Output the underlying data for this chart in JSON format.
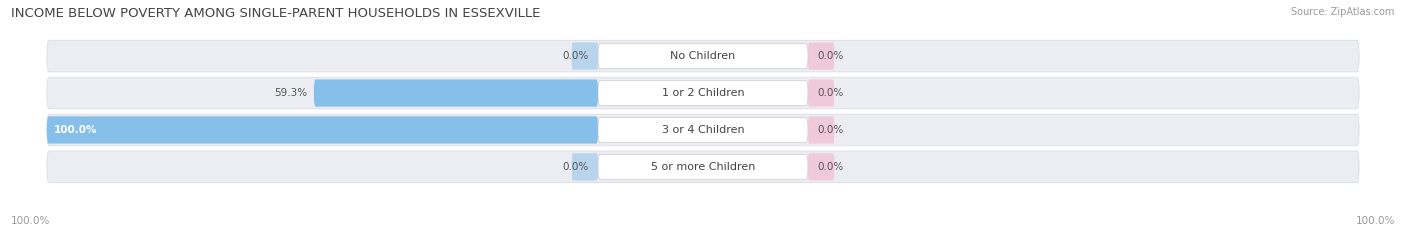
{
  "title": "INCOME BELOW POVERTY AMONG SINGLE-PARENT HOUSEHOLDS IN ESSEXVILLE",
  "source": "Source: ZipAtlas.com",
  "categories": [
    "No Children",
    "1 or 2 Children",
    "3 or 4 Children",
    "5 or more Children"
  ],
  "single_father": [
    0.0,
    59.3,
    100.0,
    0.0
  ],
  "single_mother": [
    0.0,
    0.0,
    0.0,
    0.0
  ],
  "color_father": "#85BFEA",
  "color_mother": "#F4A8C0",
  "bar_bg_color": "#ECEDF2",
  "row_sep_color": "#D8D8E0",
  "max_value": 100.0,
  "x_axis_left_label": "100.0%",
  "x_axis_right_label": "100.0%",
  "title_fontsize": 9.5,
  "label_fontsize": 7.5,
  "value_fontsize": 7.5,
  "legend_fontsize": 8,
  "source_fontsize": 7,
  "cat_label_fontsize": 8
}
